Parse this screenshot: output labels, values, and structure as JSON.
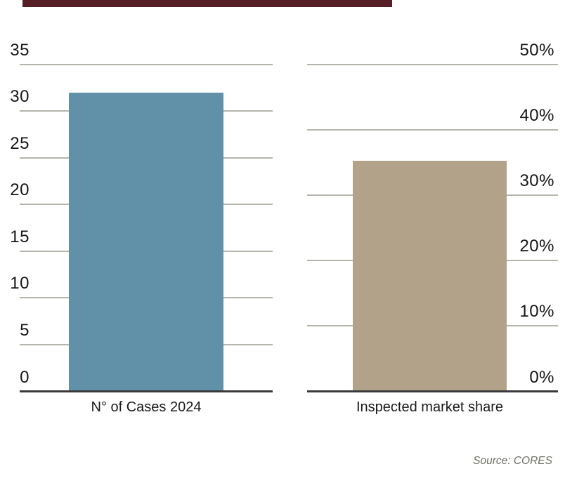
{
  "page": {
    "background_color": "#ffffff",
    "header_rule_color": "#551f25"
  },
  "source": {
    "text": "Source: CORES",
    "color": "#6f6f66"
  },
  "chart_data": [
    {
      "type": "bar",
      "name": "cases-2024",
      "categories": [
        "N° of Cases 2024"
      ],
      "values": [
        32
      ],
      "ylim": [
        0,
        35
      ],
      "yticks": [
        0,
        5,
        10,
        15,
        20,
        25,
        30,
        35
      ],
      "tick_suffix": "",
      "tick_side": "left",
      "grid_on": true,
      "legend": "none",
      "bar_color": "#6191a8",
      "axis_color": "#3a3a3c",
      "grid_color": "#b5b5ad"
    },
    {
      "type": "bar",
      "name": "inspected-market-share",
      "categories": [
        "Inspected market share"
      ],
      "values": [
        35.3
      ],
      "ylim": [
        0,
        50
      ],
      "yticks": [
        0,
        10,
        20,
        30,
        40,
        50
      ],
      "tick_suffix": "%",
      "tick_side": "right",
      "grid_on": true,
      "legend": "none",
      "bar_color": "#b1a289",
      "axis_color": "#3a3a3c",
      "grid_color": "#b5b5ad"
    }
  ]
}
